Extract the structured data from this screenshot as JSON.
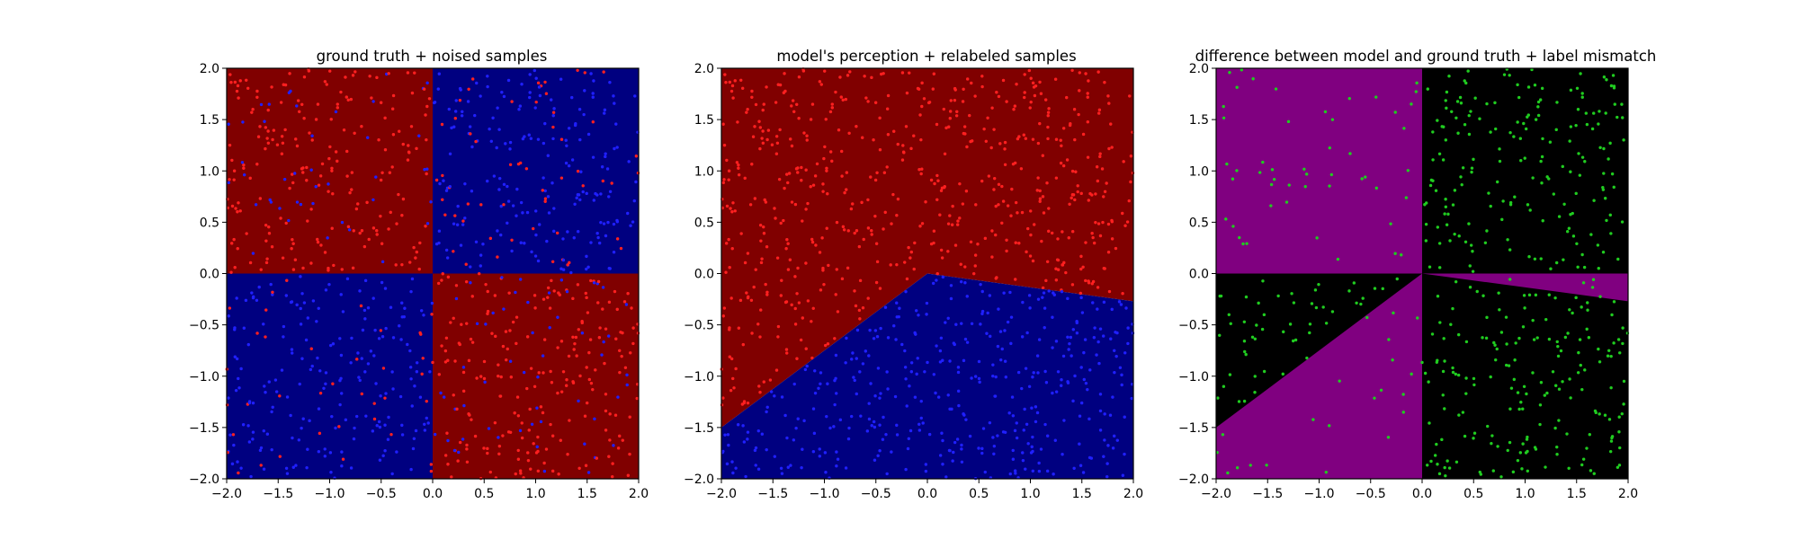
{
  "figure": {
    "background": "#ffffff"
  },
  "chart_data": [
    {
      "type": "scatter",
      "title": "ground truth + noised samples",
      "xlabel": "",
      "ylabel": "",
      "xlim": [
        -2.0,
        2.0
      ],
      "ylim": [
        -2.0,
        2.0
      ],
      "xticks": [
        "−2.0",
        "−1.5",
        "−1.0",
        "−0.5",
        "0.0",
        "0.5",
        "1.0",
        "1.5",
        "2.0"
      ],
      "yticks": [
        "−2.0",
        "−1.5",
        "−1.0",
        "−0.5",
        "0.0",
        "0.5",
        "1.0",
        "1.5",
        "2.0"
      ],
      "grid": false,
      "background_regions": [
        {
          "description": "x<0, y>0",
          "polygon": [
            [
              -2,
              0
            ],
            [
              0,
              0
            ],
            [
              0,
              2
            ],
            [
              -2,
              2
            ]
          ],
          "color": "#800000"
        },
        {
          "description": "x>0, y>0",
          "polygon": [
            [
              0,
              0
            ],
            [
              2,
              0
            ],
            [
              2,
              2
            ],
            [
              0,
              2
            ]
          ],
          "color": "#000080"
        },
        {
          "description": "x<0, y<0",
          "polygon": [
            [
              -2,
              -2
            ],
            [
              0,
              -2
            ],
            [
              0,
              0
            ],
            [
              -2,
              0
            ]
          ],
          "color": "#000080"
        },
        {
          "description": "x>0, y<0",
          "polygon": [
            [
              0,
              -2
            ],
            [
              2,
              -2
            ],
            [
              2,
              0
            ],
            [
              0,
              0
            ]
          ],
          "color": "#800000"
        }
      ],
      "samples": {
        "count": 1000,
        "rule": "quadrant_noised",
        "colors": [
          "#ff2020",
          "#2020ff"
        ]
      }
    },
    {
      "type": "scatter",
      "title": "model's perception + relabeled samples",
      "xlabel": "",
      "ylabel": "",
      "xlim": [
        -2.0,
        2.0
      ],
      "ylim": [
        -2.0,
        2.0
      ],
      "xticks": [
        "−2.0",
        "−1.5",
        "−1.0",
        "−0.5",
        "0.0",
        "0.5",
        "1.0",
        "1.5",
        "2.0"
      ],
      "yticks": [
        "−2.0",
        "−1.5",
        "−1.0",
        "−0.5",
        "0.0",
        "0.5",
        "1.0",
        "1.5",
        "2.0"
      ],
      "grid": false,
      "background_regions": [
        {
          "description": "upper region",
          "polygon": [
            [
              -2,
              2
            ],
            [
              2,
              2
            ],
            [
              2,
              -0.27
            ],
            [
              0,
              0
            ],
            [
              -2,
              -1.5
            ]
          ],
          "color": "#800000"
        },
        {
          "description": "lower region",
          "polygon": [
            [
              -2,
              -2
            ],
            [
              2,
              -2
            ],
            [
              2,
              -0.27
            ],
            [
              0,
              0
            ],
            [
              -2,
              -1.5
            ]
          ],
          "color": "#000080"
        }
      ],
      "boundary": [
        [
          -2,
          -1.5
        ],
        [
          0,
          0
        ],
        [
          2,
          -0.27
        ]
      ],
      "samples": {
        "count": 1000,
        "rule": "model_relabeled",
        "colors": [
          "#ff2020",
          "#2020ff"
        ]
      }
    },
    {
      "type": "scatter",
      "title": "difference between model and ground truth + label mismatch",
      "xlabel": "",
      "ylabel": "",
      "xlim": [
        -2.0,
        2.0
      ],
      "ylim": [
        -2.0,
        2.0
      ],
      "xticks": [
        "−2.0",
        "−1.5",
        "−1.0",
        "−0.5",
        "0.0",
        "0.5",
        "1.0",
        "1.5",
        "2.0"
      ],
      "yticks": [
        "−2.0",
        "−1.5",
        "−1.0",
        "−0.5",
        "0.0",
        "0.5",
        "1.0",
        "1.5",
        "2.0"
      ],
      "grid": false,
      "background_regions": [
        {
          "description": "agreement",
          "polygon": [
            [
              -2,
              -2
            ],
            [
              2,
              -2
            ],
            [
              2,
              2
            ],
            [
              -2,
              2
            ]
          ],
          "color": "#000000"
        },
        {
          "description": "mismatch x<0, y>0",
          "polygon": [
            [
              -2,
              0
            ],
            [
              0,
              0
            ],
            [
              0,
              2
            ],
            [
              -2,
              2
            ]
          ],
          "color": "#800080"
        },
        {
          "description": "mismatch wedge lower-left",
          "polygon": [
            [
              -2,
              -2
            ],
            [
              0,
              -2
            ],
            [
              0,
              0
            ],
            [
              -2,
              -1.5
            ]
          ],
          "color": "#800080"
        },
        {
          "description": "mismatch sliver lower-right",
          "polygon": [
            [
              0,
              0
            ],
            [
              2,
              0
            ],
            [
              2,
              -0.27
            ]
          ],
          "color": "#800080"
        }
      ],
      "samples": {
        "count": 1000,
        "rule": "label_mismatch",
        "colors": [
          "#20cc20"
        ]
      }
    }
  ]
}
